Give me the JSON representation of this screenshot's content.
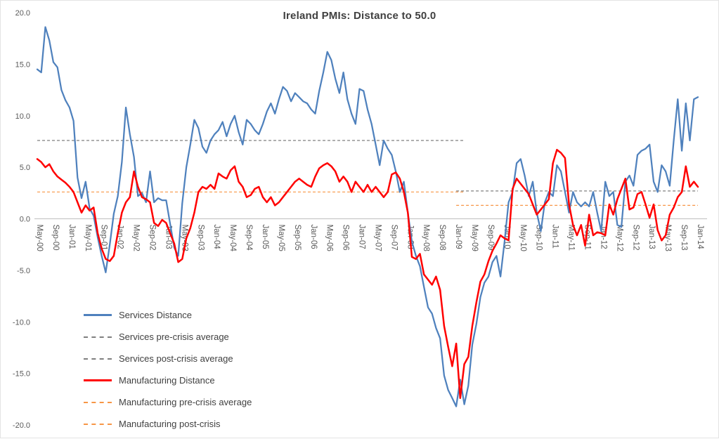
{
  "chart_data": {
    "type": "line",
    "title": "Ireland PMIs: Distance to 50.0",
    "xlabel": "",
    "ylabel": "",
    "ylim": [
      -20.0,
      20.0
    ],
    "y_tick_values": [
      20.0,
      15.0,
      10.0,
      5.0,
      0.0,
      -5.0,
      -10.0,
      -15.0,
      -20.0
    ],
    "y_tick_labels": [
      "20.0",
      "15.0",
      "10.0",
      "5.0",
      "0.0",
      "-5.0",
      "-10.0",
      "-15.0",
      "-20.0"
    ],
    "x_start": "May-00",
    "x_end": "Jan-14",
    "x_frequency": "monthly",
    "x_tick_every": 4,
    "x_tick_labels": [
      "May-00",
      "Sep-00",
      "Jan-01",
      "May-01",
      "Sep-01",
      "Jan-02",
      "May-02",
      "Sep-02",
      "Jan-03",
      "May-03",
      "Sep-03",
      "Jan-04",
      "May-04",
      "Sep-04",
      "Jan-05",
      "May-05",
      "Sep-05",
      "Jan-06",
      "May-06",
      "Sep-06",
      "Jan-07",
      "May-07",
      "Sep-07",
      "Jan-08",
      "May-08",
      "Sep-08",
      "Jan-09",
      "May-09",
      "Sep-09",
      "Jan-10",
      "May-10",
      "Sep-10",
      "Jan-11",
      "May-11",
      "Sep-11",
      "Jan-12",
      "May-12",
      "Sep-12",
      "Jan-13",
      "May-13",
      "Sep-13",
      "Jan-14"
    ],
    "grid": "zero-line-only",
    "axis_color": "#bfbfbf",
    "series": [
      {
        "name": "Services Distance",
        "color": "#4f81bd",
        "width": 2.25,
        "values": [
          14.5,
          14.2,
          18.6,
          17.3,
          15.2,
          14.7,
          12.5,
          11.5,
          10.8,
          9.5,
          4.0,
          2.0,
          3.6,
          1.0,
          0.3,
          -1.8,
          -3.6,
          -5.2,
          -2.5,
          0.5,
          2.2,
          5.5,
          10.8,
          8.2,
          6.0,
          2.2,
          2.5,
          1.6,
          4.6,
          1.6,
          2.0,
          1.8,
          1.8,
          -0.5,
          -2.8,
          -3.6,
          1.5,
          5.0,
          7.2,
          9.6,
          8.8,
          7.0,
          6.4,
          7.6,
          8.2,
          8.6,
          9.4,
          8.0,
          9.2,
          10.0,
          8.4,
          7.2,
          9.6,
          9.2,
          8.6,
          8.2,
          9.2,
          10.4,
          11.2,
          10.2,
          11.6,
          12.8,
          12.4,
          11.4,
          12.2,
          11.8,
          11.4,
          11.2,
          10.6,
          10.2,
          12.4,
          14.2,
          16.2,
          15.4,
          13.6,
          12.2,
          14.2,
          11.6,
          10.2,
          9.2,
          12.6,
          12.4,
          10.6,
          9.2,
          7.2,
          5.2,
          7.6,
          6.8,
          6.2,
          4.6,
          2.6,
          3.6,
          0.6,
          -2.2,
          -3.6,
          -4.6,
          -6.6,
          -8.6,
          -9.2,
          -10.6,
          -11.6,
          -15.2,
          -16.6,
          -17.4,
          -18.2,
          -15.6,
          -18.0,
          -16.2,
          -12.2,
          -10.2,
          -7.6,
          -6.2,
          -5.6,
          -4.2,
          -3.6,
          -5.6,
          -2.2,
          1.6,
          2.6,
          5.4,
          5.8,
          4.2,
          2.2,
          3.6,
          0.6,
          -1.2,
          1.6,
          2.6,
          2.2,
          5.2,
          4.6,
          2.6,
          0.6,
          2.6,
          1.6,
          1.2,
          1.6,
          1.2,
          2.6,
          0.6,
          -1.2,
          3.6,
          2.2,
          2.6,
          -0.6,
          -0.8,
          3.6,
          4.2,
          3.2,
          6.2,
          6.6,
          6.8,
          7.2,
          3.6,
          2.6,
          5.2,
          4.6,
          3.2,
          7.6,
          11.6,
          6.6,
          11.2,
          7.6,
          11.6,
          11.8
        ]
      },
      {
        "name": "Manufacturing Distance",
        "color": "#ff0000",
        "width": 2.5,
        "values": [
          5.8,
          5.5,
          5.0,
          5.3,
          4.6,
          4.1,
          3.8,
          3.5,
          3.1,
          2.6,
          1.6,
          0.6,
          1.3,
          0.8,
          1.1,
          -1.4,
          -2.9,
          -3.9,
          -4.1,
          -3.6,
          -1.4,
          0.6,
          1.6,
          2.1,
          4.6,
          3.1,
          2.1,
          1.9,
          1.6,
          -0.4,
          -0.7,
          -0.1,
          -0.4,
          -1.4,
          -2.4,
          -4.2,
          -3.9,
          -1.9,
          -0.9,
          0.6,
          2.6,
          3.1,
          2.9,
          3.3,
          2.9,
          4.4,
          4.1,
          3.9,
          4.7,
          5.1,
          3.6,
          3.1,
          2.1,
          2.3,
          2.9,
          3.1,
          2.1,
          1.6,
          2.1,
          1.3,
          1.6,
          2.1,
          2.6,
          3.1,
          3.6,
          3.9,
          3.6,
          3.3,
          3.1,
          4.1,
          4.9,
          5.2,
          5.4,
          5.1,
          4.6,
          3.6,
          4.1,
          3.6,
          2.6,
          3.6,
          3.1,
          2.6,
          3.3,
          2.6,
          3.1,
          2.6,
          2.1,
          2.6,
          4.3,
          4.5,
          3.9,
          2.6,
          0.6,
          -3.7,
          -3.9,
          -3.4,
          -5.4,
          -5.9,
          -6.4,
          -5.6,
          -6.9,
          -10.4,
          -12.4,
          -14.3,
          -12.1,
          -17.4,
          -14.1,
          -13.4,
          -10.4,
          -8.1,
          -6.1,
          -5.4,
          -4.1,
          -3.1,
          -2.4,
          -1.6,
          -1.9,
          -2.1,
          2.9,
          3.9,
          3.4,
          2.9,
          2.4,
          1.4,
          0.4,
          0.9,
          1.4,
          1.9,
          5.4,
          6.7,
          6.4,
          5.9,
          1.4,
          -0.6,
          -1.6,
          -0.6,
          -2.6,
          0.4,
          -1.6,
          -1.3,
          -1.4,
          -1.6,
          1.4,
          0.4,
          1.9,
          2.9,
          3.9,
          0.9,
          1.1,
          2.4,
          2.6,
          1.4,
          0.1,
          1.4,
          -1.1,
          -2.1,
          -1.6,
          0.4,
          1.1,
          2.1,
          2.6,
          5.1,
          3.1,
          3.6,
          3.1
        ]
      }
    ],
    "reference_lines": [
      {
        "name": "services-pre-crisis-average",
        "label": "Services pre-crisis average",
        "value": 7.6,
        "start_index": 0,
        "end_index": 106,
        "color": "#7f7f7f",
        "dash": true
      },
      {
        "name": "services-post-crisis-average",
        "label": "Services post-crisis average",
        "value": 2.7,
        "start_index": 104,
        "end_index": 164,
        "color": "#7f7f7f",
        "dash": true
      },
      {
        "name": "manufacturing-pre-crisis-average",
        "label": "Manufacturing pre-crisis average",
        "value": 2.6,
        "start_index": 0,
        "end_index": 106,
        "color": "#f79646",
        "dash": true
      },
      {
        "name": "manufacturing-post-crisis",
        "label": "Manufacturing post-crisis",
        "value": 1.3,
        "start_index": 104,
        "end_index": 164,
        "color": "#f79646",
        "dash": true
      }
    ]
  },
  "legend": {
    "position": "inside-bottom-left",
    "items": [
      {
        "label": "Services Distance",
        "color": "#4f81bd",
        "style": "solid"
      },
      {
        "label": "Services pre-crisis average",
        "color": "#7f7f7f",
        "style": "dashed"
      },
      {
        "label": "Services post-crisis average",
        "color": "#7f7f7f",
        "style": "dashed"
      },
      {
        "label": "Manufacturing Distance",
        "color": "#ff0000",
        "style": "solid"
      },
      {
        "label": "Manufacturing pre-crisis average",
        "color": "#f79646",
        "style": "dashed"
      },
      {
        "label": "Manufacturing post-crisis",
        "color": "#f79646",
        "style": "dashed"
      }
    ]
  }
}
